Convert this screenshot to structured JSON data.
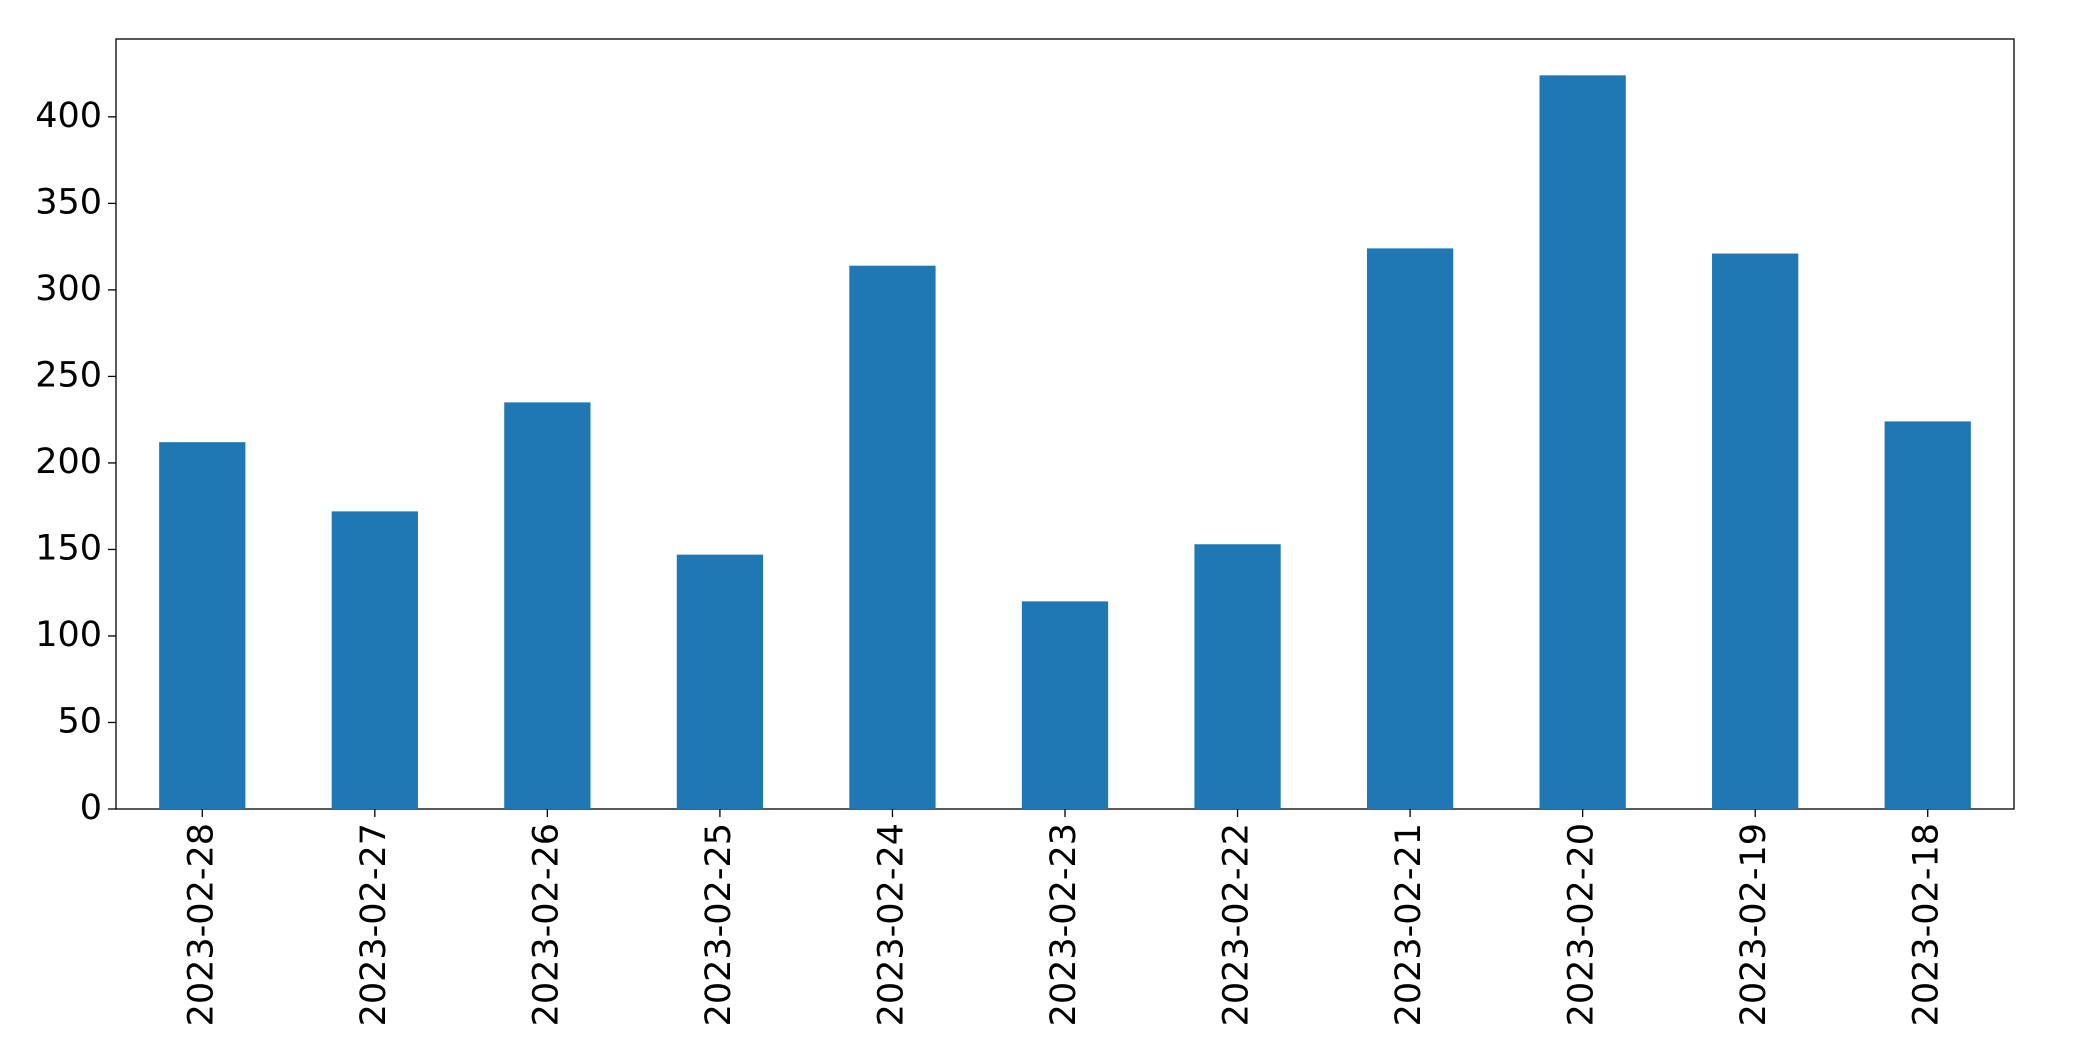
{
  "chart_data": {
    "type": "bar",
    "categories": [
      "2023-02-28",
      "2023-02-27",
      "2023-02-26",
      "2023-02-25",
      "2023-02-24",
      "2023-02-23",
      "2023-02-22",
      "2023-02-21",
      "2023-02-20",
      "2023-02-19",
      "2023-02-18"
    ],
    "values": [
      212,
      172,
      235,
      147,
      314,
      120,
      153,
      324,
      424,
      321,
      224
    ],
    "color": "#1f77b4",
    "ylim": [
      0,
      445
    ],
    "yticks": [
      0,
      50,
      100,
      150,
      200,
      250,
      300,
      350,
      400
    ],
    "grid": false
  }
}
